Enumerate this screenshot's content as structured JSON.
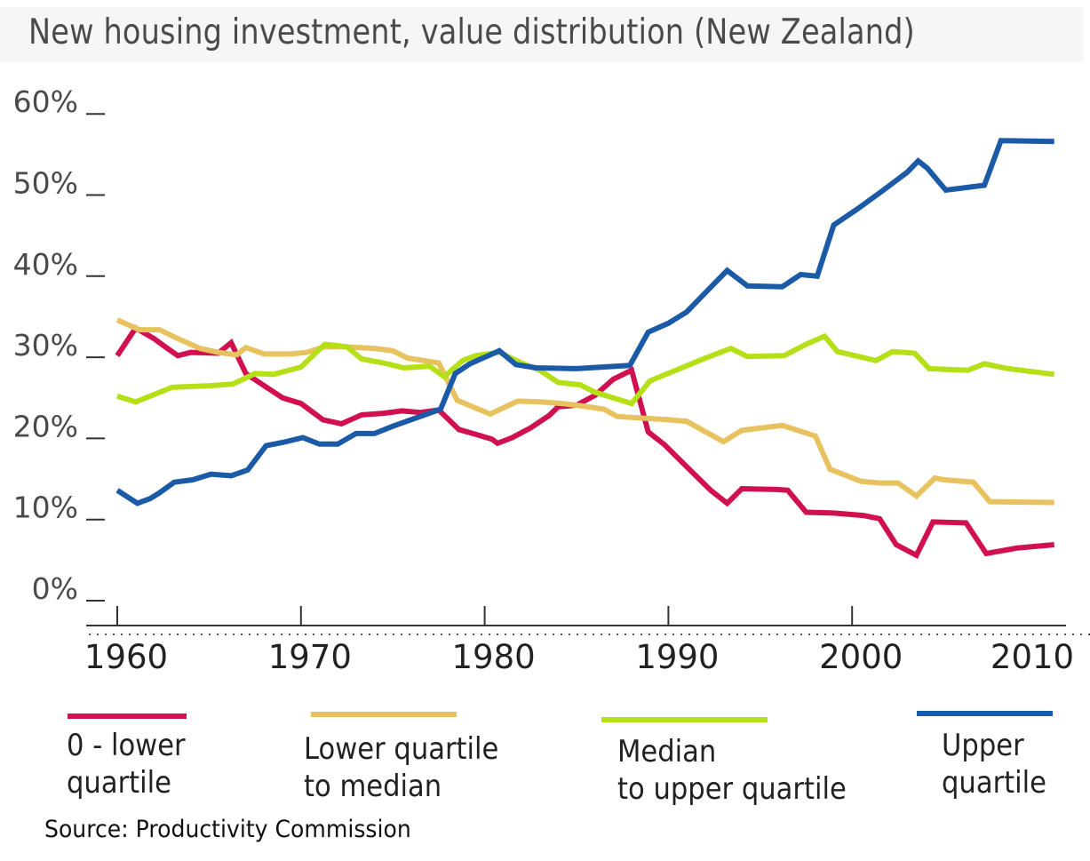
{
  "chart_data": {
    "type": "line",
    "title": "New housing investment, value distribution (New Zealand)",
    "xlabel": "",
    "ylabel": "",
    "xlim": [
      1960,
      2011
    ],
    "ylim": [
      0,
      60
    ],
    "x_ticks": [
      1960,
      1970,
      1980,
      1990,
      2000,
      2010
    ],
    "x_tick_labels": [
      "1960",
      "1970",
      "1980",
      "1990",
      "2000",
      "2010"
    ],
    "y_ticks": [
      0,
      10,
      20,
      30,
      40,
      50,
      60
    ],
    "y_tick_labels": [
      "0%",
      "10%",
      "20%",
      "30%",
      "40%",
      "50%",
      "60%"
    ],
    "grid": false,
    "legend_position": "bottom",
    "source": "Source: Productivity Commission",
    "series": [
      {
        "name": "0 - lower quartile",
        "legend_label": "0 - lower\nquartile",
        "color": "#d1104f",
        "points": [
          [
            1960,
            30.2
          ],
          [
            1961,
            33.6
          ],
          [
            1962,
            32.3
          ],
          [
            1962.6,
            31.3
          ],
          [
            1963.3,
            30.2
          ],
          [
            1964,
            30.6
          ],
          [
            1965.5,
            30.5
          ],
          [
            1966.2,
            31.8
          ],
          [
            1967,
            28.0
          ],
          [
            1968,
            26.5
          ],
          [
            1969,
            25.0
          ],
          [
            1970,
            24.3
          ],
          [
            1971.2,
            22.3
          ],
          [
            1972.2,
            21.8
          ],
          [
            1973.3,
            22.9
          ],
          [
            1974.5,
            23.1
          ],
          [
            1975.5,
            23.4
          ],
          [
            1976.5,
            23.2
          ],
          [
            1977.5,
            23.5
          ],
          [
            1978.6,
            21.1
          ],
          [
            1979.5,
            20.5
          ],
          [
            1980.4,
            19.9
          ],
          [
            1980.7,
            19.4
          ],
          [
            1981.5,
            20.1
          ],
          [
            1982.5,
            21.3
          ],
          [
            1983.5,
            22.8
          ],
          [
            1984,
            23.9
          ],
          [
            1985,
            24.1
          ],
          [
            1986,
            25.3
          ],
          [
            1987,
            27.3
          ],
          [
            1988,
            28.4
          ],
          [
            1988.9,
            20.8
          ],
          [
            1989.8,
            19.2
          ],
          [
            1991,
            16.5
          ],
          [
            1992.3,
            13.6
          ],
          [
            1993.2,
            12.0
          ],
          [
            1994,
            13.8
          ],
          [
            1995.9,
            13.7
          ],
          [
            1996.5,
            13.6
          ],
          [
            1997.5,
            10.9
          ],
          [
            1999,
            10.8
          ],
          [
            2000.6,
            10.5
          ],
          [
            2001.5,
            10.1
          ],
          [
            2002.4,
            6.9
          ],
          [
            2003.5,
            5.6
          ],
          [
            2004.4,
            9.7
          ],
          [
            2006.2,
            9.6
          ],
          [
            2007.3,
            5.8
          ],
          [
            2009,
            6.5
          ],
          [
            2011,
            6.9
          ]
        ]
      },
      {
        "name": "Lower quartile to median",
        "legend_label": "Lower quartile\nto median",
        "color": "#e8c25f",
        "points": [
          [
            1960,
            34.6
          ],
          [
            1961.2,
            33.4
          ],
          [
            1962.3,
            33.4
          ],
          [
            1963.2,
            32.4
          ],
          [
            1964.5,
            31.1
          ],
          [
            1965.5,
            30.6
          ],
          [
            1966.5,
            30.3
          ],
          [
            1967,
            31.2
          ],
          [
            1968,
            30.4
          ],
          [
            1969.5,
            30.4
          ],
          [
            1970.3,
            30.6
          ],
          [
            1971.3,
            31.3
          ],
          [
            1972.3,
            31.3
          ],
          [
            1974,
            31.1
          ],
          [
            1975,
            30.8
          ],
          [
            1975.8,
            29.9
          ],
          [
            1977.5,
            29.3
          ],
          [
            1978.5,
            24.7
          ],
          [
            1980.3,
            23.0
          ],
          [
            1981.8,
            24.6
          ],
          [
            1983,
            24.5
          ],
          [
            1984.2,
            24.3
          ],
          [
            1985.3,
            24.0
          ],
          [
            1986.5,
            23.6
          ],
          [
            1987.2,
            22.7
          ],
          [
            1990,
            22.3
          ],
          [
            1991,
            22.1
          ],
          [
            1993,
            19.6
          ],
          [
            1994,
            21.0
          ],
          [
            1996.2,
            21.6
          ],
          [
            1998,
            20.3
          ],
          [
            1998.8,
            16.2
          ],
          [
            2000.5,
            14.7
          ],
          [
            2001.5,
            14.5
          ],
          [
            2002.5,
            14.5
          ],
          [
            2003.5,
            12.9
          ],
          [
            2004.5,
            15.1
          ],
          [
            2005,
            14.9
          ],
          [
            2006.6,
            14.6
          ],
          [
            2007.5,
            12.2
          ],
          [
            2011,
            12.1
          ]
        ]
      },
      {
        "name": "Median to upper quartile",
        "legend_label": "Median\nto upper quartile",
        "color": "#b5e017",
        "points": [
          [
            1960,
            25.2
          ],
          [
            1961,
            24.5
          ],
          [
            1962,
            25.4
          ],
          [
            1963,
            26.3
          ],
          [
            1965,
            26.5
          ],
          [
            1966.3,
            26.7
          ],
          [
            1967.5,
            28.0
          ],
          [
            1968.5,
            27.9
          ],
          [
            1970,
            28.8
          ],
          [
            1971.3,
            31.6
          ],
          [
            1972.5,
            31.3
          ],
          [
            1973.3,
            29.8
          ],
          [
            1974.5,
            29.3
          ],
          [
            1975.6,
            28.7
          ],
          [
            1977,
            28.9
          ],
          [
            1977.8,
            27.6
          ],
          [
            1978.8,
            29.6
          ],
          [
            1979.5,
            30.2
          ],
          [
            1980.8,
            30.6
          ],
          [
            1982,
            29.3
          ],
          [
            1983,
            28.4
          ],
          [
            1984,
            26.9
          ],
          [
            1985.2,
            26.6
          ],
          [
            1986,
            25.7
          ],
          [
            1988,
            24.3
          ],
          [
            1989,
            27.1
          ],
          [
            1990.2,
            28.2
          ],
          [
            1991.8,
            29.7
          ],
          [
            1993.4,
            31.1
          ],
          [
            1994.3,
            30.1
          ],
          [
            1996.3,
            30.2
          ],
          [
            1997.5,
            31.6
          ],
          [
            1998.5,
            32.6
          ],
          [
            1999.2,
            30.7
          ],
          [
            2001.3,
            29.6
          ],
          [
            2002.2,
            30.7
          ],
          [
            2003.4,
            30.5
          ],
          [
            2004.2,
            28.6
          ],
          [
            2006.3,
            28.4
          ],
          [
            2007.2,
            29.2
          ],
          [
            2008.5,
            28.6
          ],
          [
            2011,
            27.9
          ]
        ]
      },
      {
        "name": "Upper quartile",
        "legend_label": "Upper\nquartile",
        "color": "#1a5aa6",
        "points": [
          [
            1960,
            13.6
          ],
          [
            1961.1,
            12.0
          ],
          [
            1961.8,
            12.6
          ],
          [
            1962.3,
            13.3
          ],
          [
            1963.1,
            14.6
          ],
          [
            1964.1,
            14.9
          ],
          [
            1965.1,
            15.6
          ],
          [
            1966.2,
            15.4
          ],
          [
            1967.1,
            16.1
          ],
          [
            1968.1,
            19.1
          ],
          [
            1969,
            19.5
          ],
          [
            1970.1,
            20.1
          ],
          [
            1971,
            19.3
          ],
          [
            1972,
            19.3
          ],
          [
            1973,
            20.6
          ],
          [
            1974,
            20.6
          ],
          [
            1975,
            21.5
          ],
          [
            1977.6,
            23.6
          ],
          [
            1978.4,
            28.0
          ],
          [
            1979.2,
            29.2
          ],
          [
            1980.8,
            30.8
          ],
          [
            1981.7,
            29.1
          ],
          [
            1982.8,
            28.7
          ],
          [
            1985,
            28.6
          ],
          [
            1987.9,
            29.0
          ],
          [
            1988.9,
            33.1
          ],
          [
            1990,
            34.2
          ],
          [
            1991,
            35.6
          ],
          [
            1992.2,
            38.4
          ],
          [
            1993.2,
            40.7
          ],
          [
            1994.3,
            38.8
          ],
          [
            1996.2,
            38.7
          ],
          [
            1997.2,
            40.2
          ],
          [
            1998.1,
            40.0
          ],
          [
            1999,
            46.3
          ],
          [
            2000.3,
            48.3
          ],
          [
            2001.7,
            50.6
          ],
          [
            2003,
            52.8
          ],
          [
            2003.6,
            54.2
          ],
          [
            2004.1,
            53.3
          ],
          [
            2005.1,
            50.6
          ],
          [
            2007.2,
            51.2
          ],
          [
            2008.1,
            56.7
          ],
          [
            2011,
            56.6
          ]
        ]
      }
    ]
  }
}
